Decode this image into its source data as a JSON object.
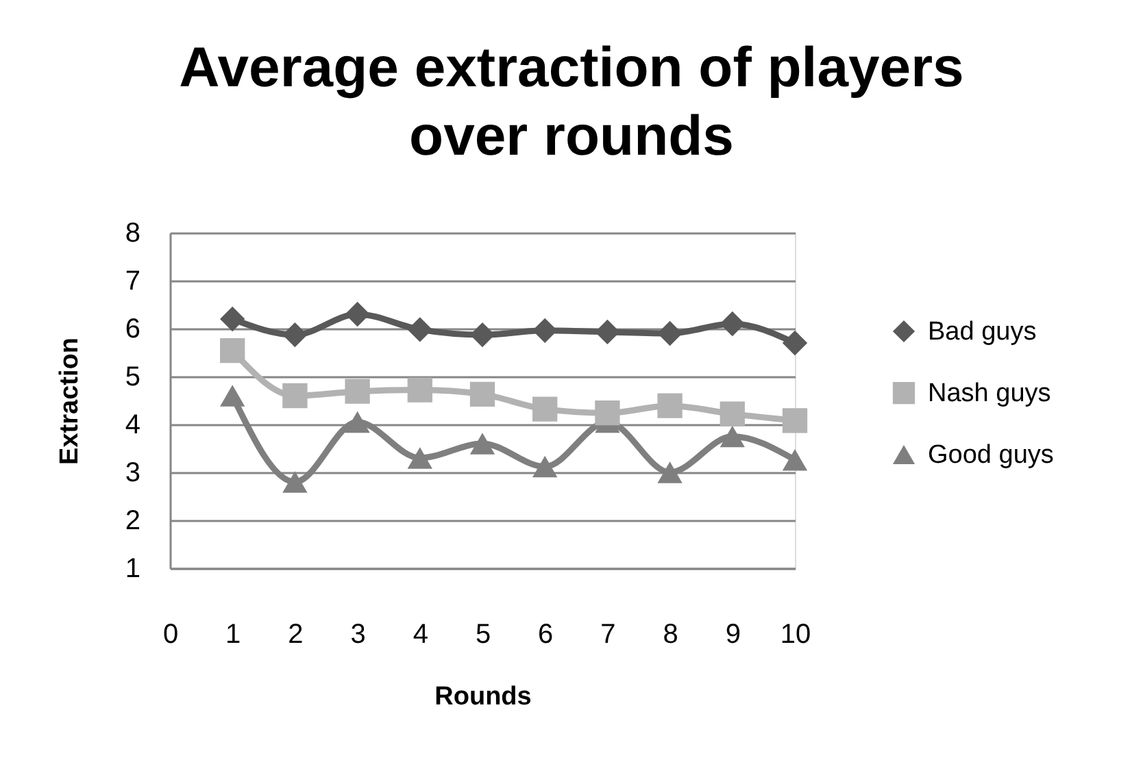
{
  "chart_data": {
    "type": "line",
    "title": [
      "Average extraction of players",
      "over rounds"
    ],
    "xlabel": "Rounds",
    "ylabel": "Extraction",
    "x": [
      1,
      2,
      3,
      4,
      5,
      6,
      7,
      8,
      9,
      10
    ],
    "series": [
      {
        "name": "Bad guys",
        "color": "#595959",
        "marker": "diamond",
        "values": [
          6.2,
          5.87,
          6.3,
          5.98,
          5.87,
          5.96,
          5.93,
          5.9,
          6.1,
          5.7
        ]
      },
      {
        "name": "Nash guys",
        "color": "#b2b2b2",
        "marker": "square",
        "values": [
          5.54,
          4.6,
          4.69,
          4.72,
          4.63,
          4.32,
          4.24,
          4.39,
          4.22,
          4.08
        ]
      },
      {
        "name": "Good guys",
        "color": "#7f7f7f",
        "marker": "triangle",
        "values": [
          4.6,
          2.8,
          4.05,
          3.3,
          3.6,
          3.12,
          4.05,
          3.0,
          3.75,
          3.26
        ]
      }
    ],
    "xlim": [
      0,
      10
    ],
    "xticks": [
      0,
      1,
      2,
      3,
      4,
      5,
      6,
      7,
      8,
      9,
      10
    ],
    "ylim": [
      1,
      8
    ],
    "yticks": [
      1,
      2,
      3,
      4,
      5,
      6,
      7,
      8
    ],
    "grid": "y",
    "legend": "right",
    "line_style": "solid"
  }
}
